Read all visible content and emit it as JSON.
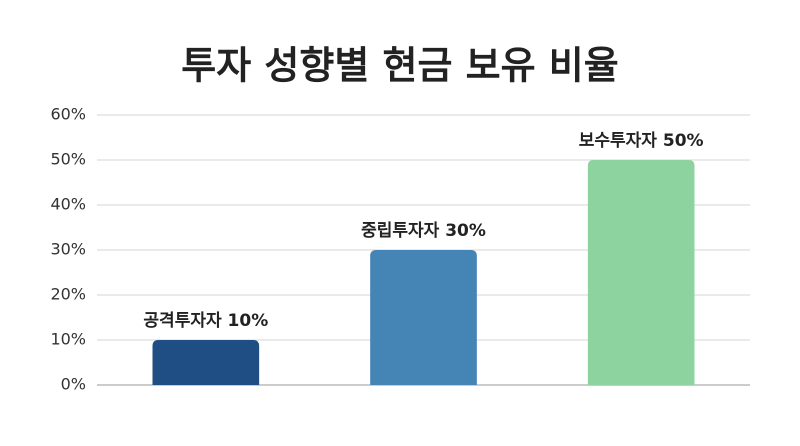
{
  "chart_data": {
    "type": "bar",
    "title": "투자 성향별 현금 보유 비율",
    "values": [
      10,
      30,
      50
    ],
    "value_labels": [
      "공격투자자 10%",
      "중립투자자 30%",
      "보수투자자 50%"
    ],
    "colors": [
      "#1f4e85",
      "#4485b5",
      "#8dd3a0"
    ],
    "ylim": [
      0,
      60
    ],
    "yticks": [
      {
        "value": 0,
        "label": "0%"
      },
      {
        "value": 10,
        "label": "10%"
      },
      {
        "value": 20,
        "label": "20%"
      },
      {
        "value": 30,
        "label": "30%"
      },
      {
        "value": 40,
        "label": "40%"
      },
      {
        "value": 50,
        "label": "50%"
      },
      {
        "value": 60,
        "label": "60%"
      }
    ],
    "grid": true
  }
}
